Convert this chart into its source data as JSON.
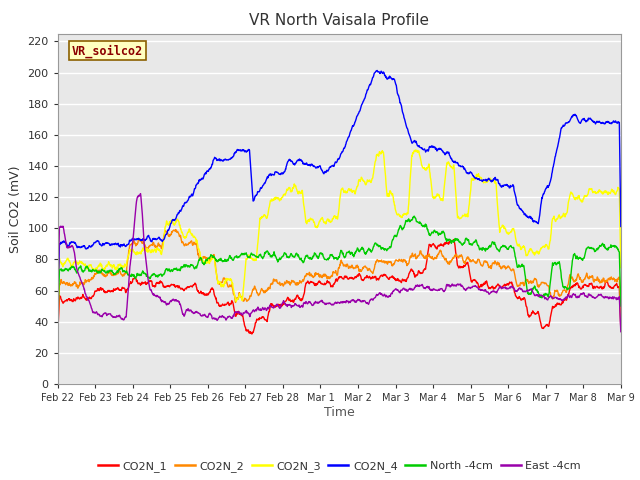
{
  "title": "VR North Vaisala Profile",
  "ylabel": "Soil CO2 (mV)",
  "xlabel": "Time",
  "subtitle_box": "VR_soilco2",
  "ylim": [
    0,
    225
  ],
  "yticks": [
    0,
    20,
    40,
    60,
    80,
    100,
    120,
    140,
    160,
    180,
    200,
    220
  ],
  "xtick_labels": [
    "Feb 22",
    "Feb 23",
    "Feb 24",
    "Feb 25",
    "Feb 26",
    "Feb 27",
    "Feb 28",
    "Mar 1",
    "Mar 2",
    "Mar 3",
    "Mar 4",
    "Mar 5",
    "Mar 6",
    "Mar 7",
    "Mar 8",
    "Mar 9"
  ],
  "background_color": "#ffffff",
  "plot_bg_color": "#e8e8e8",
  "grid_color": "#ffffff",
  "legend": [
    "CO2N_1",
    "CO2N_2",
    "CO2N_3",
    "CO2N_4",
    "North -4cm",
    "East -4cm"
  ],
  "legend_colors": [
    "#ff0000",
    "#ff8800",
    "#ffff00",
    "#0000ff",
    "#00cc00",
    "#9900aa"
  ],
  "series_colors": {
    "CO2N_1": "#ff0000",
    "CO2N_2": "#ff8800",
    "CO2N_3": "#ffff00",
    "CO2N_4": "#0000ff",
    "North_4cm": "#00cc00",
    "East_4cm": "#9900aa"
  }
}
